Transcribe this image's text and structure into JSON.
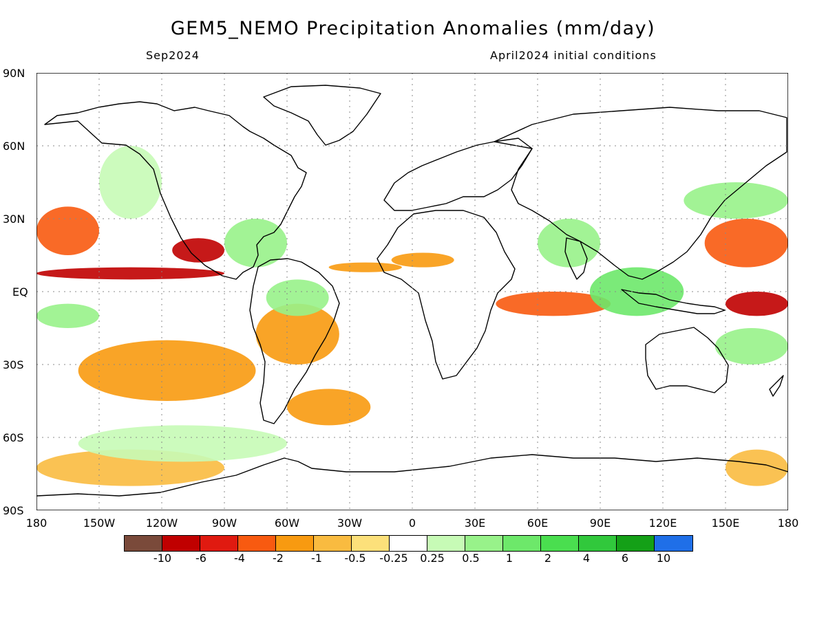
{
  "title": "GEM5_NEMO Precipitation Anomalies (mm/day)",
  "subtitle_left": "Sep2024",
  "subtitle_right": "April2024 initial conditions",
  "lat_labels": [
    "90N",
    "60N",
    "30N",
    "EQ",
    "30S",
    "60S",
    "90S"
  ],
  "lon_labels": [
    "180",
    "150W",
    "120W",
    "90W",
    "60W",
    "30W",
    "0",
    "30E",
    "60E",
    "90E",
    "120E",
    "150E",
    "180"
  ],
  "colorbar": {
    "colors": [
      "#7a4a3a",
      "#c00000",
      "#e01a10",
      "#f85a10",
      "#f89a10",
      "#f9bb40",
      "#fce07a",
      "#ffffff",
      "#c7fbb6",
      "#98f28a",
      "#6de86a",
      "#4ade4f",
      "#31c83c",
      "#14a017",
      "#1f6fe8"
    ],
    "labels": [
      "-10",
      "-6",
      "-4",
      "-2",
      "-1",
      "-0.5",
      "-0.25",
      "0.25",
      "0.5",
      "1",
      "2",
      "4",
      "6",
      "10"
    ]
  },
  "chart_data": {
    "type": "heatmap",
    "title": "GEM5_NEMO Precipitation Anomalies (mm/day)",
    "subtitle": [
      "Sep2024",
      "April2024 initial conditions"
    ],
    "xlim": [
      -180,
      180
    ],
    "ylim": [
      -90,
      90
    ],
    "x_ticks": [
      "180",
      "150W",
      "120W",
      "90W",
      "60W",
      "30W",
      "0",
      "30E",
      "60E",
      "90E",
      "120E",
      "150E",
      "180"
    ],
    "y_ticks": [
      "90N",
      "60N",
      "30N",
      "EQ",
      "30S",
      "60S",
      "90S"
    ],
    "grid": true,
    "levels": [
      -10,
      -6,
      -4,
      -2,
      -1,
      -0.5,
      -0.25,
      0.25,
      0.5,
      1,
      2,
      4,
      6,
      10
    ],
    "regions": [
      {
        "lon": [
          -180,
          -90
        ],
        "lat": [
          5,
          10
        ],
        "value": -6
      },
      {
        "lon": [
          -115,
          -90
        ],
        "lat": [
          12,
          22
        ],
        "value": -6
      },
      {
        "lon": [
          -180,
          -150
        ],
        "lat": [
          15,
          35
        ],
        "value": -2
      },
      {
        "lon": [
          150,
          180
        ],
        "lat": [
          -10,
          0
        ],
        "value": -6
      },
      {
        "lon": [
          140,
          180
        ],
        "lat": [
          10,
          30
        ],
        "value": -2
      },
      {
        "lon": [
          40,
          95
        ],
        "lat": [
          -10,
          0
        ],
        "value": -2
      },
      {
        "lon": [
          -10,
          20
        ],
        "lat": [
          10,
          16
        ],
        "value": -1
      },
      {
        "lon": [
          -40,
          -5
        ],
        "lat": [
          8,
          12
        ],
        "value": -1
      },
      {
        "lon": [
          -160,
          -75
        ],
        "lat": [
          -45,
          -20
        ],
        "value": -1
      },
      {
        "lon": [
          -75,
          -35
        ],
        "lat": [
          -30,
          -5
        ],
        "value": -1
      },
      {
        "lon": [
          -60,
          -20
        ],
        "lat": [
          -55,
          -40
        ],
        "value": -1
      },
      {
        "lon": [
          -180,
          -90
        ],
        "lat": [
          -80,
          -65
        ],
        "value": -0.5
      },
      {
        "lon": [
          150,
          180
        ],
        "lat": [
          -80,
          -65
        ],
        "value": -0.5
      },
      {
        "lon": [
          85,
          130
        ],
        "lat": [
          -10,
          10
        ],
        "value": 2
      },
      {
        "lon": [
          -90,
          -60
        ],
        "lat": [
          10,
          30
        ],
        "value": 1
      },
      {
        "lon": [
          -70,
          -40
        ],
        "lat": [
          -10,
          5
        ],
        "value": 1
      },
      {
        "lon": [
          60,
          90
        ],
        "lat": [
          10,
          30
        ],
        "value": 1
      },
      {
        "lon": [
          130,
          180
        ],
        "lat": [
          30,
          45
        ],
        "value": 1
      },
      {
        "lon": [
          145,
          180
        ],
        "lat": [
          -30,
          -15
        ],
        "value": 1
      },
      {
        "lon": [
          -180,
          -150
        ],
        "lat": [
          -15,
          -5
        ],
        "value": 1
      },
      {
        "lon": [
          -160,
          -60
        ],
        "lat": [
          -70,
          -55
        ],
        "value": 0.5
      },
      {
        "lon": [
          -150,
          -120
        ],
        "lat": [
          30,
          60
        ],
        "value": 0.5
      }
    ]
  }
}
